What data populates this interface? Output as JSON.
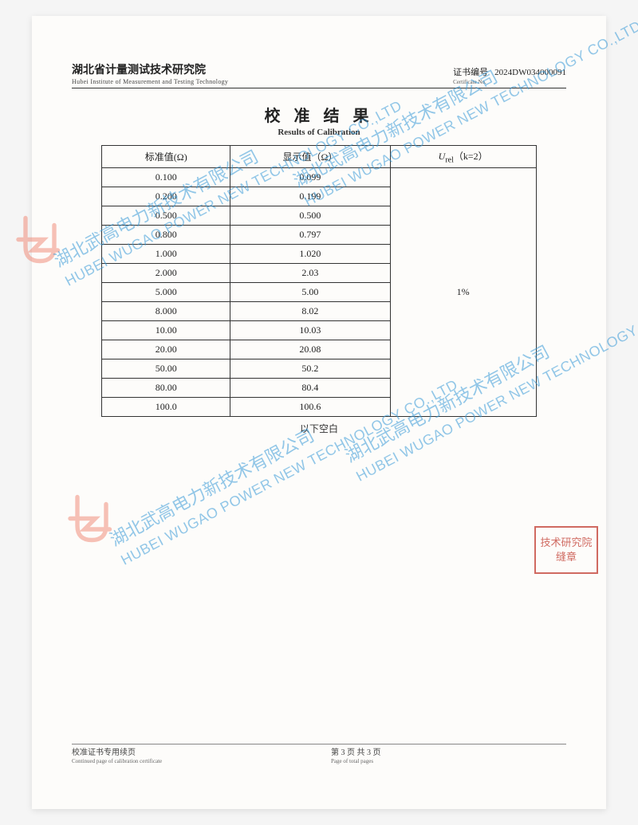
{
  "header": {
    "institute_cn": "湖北省计量测试技术研究院",
    "institute_en": "Hubei Institute of Measurement and Testing Technology",
    "cert_label_cn": "证书编号",
    "cert_label_en": "Certificate No.",
    "cert_no": "2024DW034000091"
  },
  "title": {
    "cn": "校 准 结 果",
    "en": "Results of Calibration"
  },
  "table": {
    "col1_header": "标准值(Ω)",
    "col2_header": "显示值（Ω）",
    "col3_header_html": "U",
    "col3_sub": "rel",
    "col3_tail": "（k=2）",
    "uncertainty": "1%",
    "rows": [
      {
        "std": "0.100",
        "disp": "0.099"
      },
      {
        "std": "0.200",
        "disp": "0.199"
      },
      {
        "std": "0.500",
        "disp": "0.500"
      },
      {
        "std": "0.800",
        "disp": "0.797"
      },
      {
        "std": "1.000",
        "disp": "1.020"
      },
      {
        "std": "2.000",
        "disp": "2.03"
      },
      {
        "std": "5.000",
        "disp": "5.00"
      },
      {
        "std": "8.000",
        "disp": "8.02"
      },
      {
        "std": "10.00",
        "disp": "10.03"
      },
      {
        "std": "20.00",
        "disp": "20.08"
      },
      {
        "std": "50.00",
        "disp": "50.2"
      },
      {
        "std": "80.00",
        "disp": "80.4"
      },
      {
        "std": "100.0",
        "disp": "100.6"
      }
    ]
  },
  "below_blank": "以下空白",
  "footer": {
    "left_cn": "校准证书专用续页",
    "left_en": "Continued page of calibration certificate",
    "mid_cn": "第 3 页 共 3 页",
    "mid_en": "Page  of  total  pages"
  },
  "stamp": {
    "line1": "技术研究院",
    "line2": "缝章"
  },
  "watermark": {
    "cn": "湖北武高电力新技术有限公司",
    "en": "HUBEI WUGAO POWER NEW TECHNOLOGY CO.,LTD",
    "color": "#3a9bd8",
    "logo_color": "#f08572",
    "angle_deg": -28
  },
  "colors": {
    "page_bg": "#fdfcfa",
    "outer_bg": "#f5f5f5",
    "text": "#222222",
    "border": "#333333",
    "stamp": "#c23a2f"
  }
}
